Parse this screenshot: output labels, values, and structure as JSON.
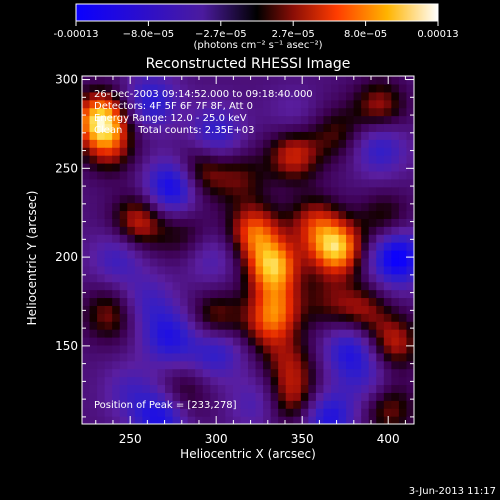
{
  "colorbar": {
    "tick_labels": [
      "-0.00013",
      "−8.0e−05",
      "−2.7e−05",
      "2.7e−05",
      "8.0e−05",
      "0.00013"
    ],
    "unit_label": "(photons cm⁻² s⁻¹ asec⁻²)",
    "range": [
      -0.00013,
      0.00013
    ]
  },
  "chart_data": {
    "type": "heatmap",
    "title": "Reconstructed RHESSI Image",
    "xlabel": "Heliocentric X (arcsec)",
    "ylabel": "Heliocentric Y (arcsec)",
    "xlim": [
      222,
      415
    ],
    "ylim": [
      106,
      302
    ],
    "xticks": [
      250,
      300,
      350,
      400
    ],
    "yticks": [
      150,
      200,
      250,
      300
    ],
    "grid": false,
    "annotations": [
      "26-Dec-2003 09:14:52.000 to 09:18:40.000",
      "Detectors: 4F 5F 6F 7F 8F, Att 0",
      "Energy Range: 12.0 - 25.0 keV",
      "Clean     Total counts: 2.35E+03"
    ],
    "peak_label": "Position of Peak = [233,278]",
    "peak": [
      233,
      278
    ],
    "blobs": [
      {
        "x": 233,
        "y": 278,
        "v": 1.0
      },
      {
        "x": 238,
        "y": 262,
        "v": 0.45
      },
      {
        "x": 262,
        "y": 288,
        "v": -0.55
      },
      {
        "x": 275,
        "y": 240,
        "v": -0.85
      },
      {
        "x": 300,
        "y": 270,
        "v": -0.5
      },
      {
        "x": 290,
        "y": 248,
        "v": 0.55
      },
      {
        "x": 314,
        "y": 245,
        "v": 0.35
      },
      {
        "x": 345,
        "y": 258,
        "v": 0.6
      },
      {
        "x": 345,
        "y": 280,
        "v": -0.2
      },
      {
        "x": 370,
        "y": 270,
        "v": 0.35
      },
      {
        "x": 395,
        "y": 285,
        "v": 0.5
      },
      {
        "x": 395,
        "y": 262,
        "v": -0.5
      },
      {
        "x": 255,
        "y": 220,
        "v": 0.6
      },
      {
        "x": 243,
        "y": 200,
        "v": -0.4
      },
      {
        "x": 282,
        "y": 213,
        "v": 0.3
      },
      {
        "x": 297,
        "y": 200,
        "v": -0.3
      },
      {
        "x": 322,
        "y": 215,
        "v": 0.7
      },
      {
        "x": 333,
        "y": 195,
        "v": 0.9
      },
      {
        "x": 357,
        "y": 220,
        "v": 0.5
      },
      {
        "x": 370,
        "y": 205,
        "v": 0.95
      },
      {
        "x": 405,
        "y": 200,
        "v": -0.9
      },
      {
        "x": 398,
        "y": 222,
        "v": 0.35
      },
      {
        "x": 238,
        "y": 168,
        "v": 0.45
      },
      {
        "x": 260,
        "y": 175,
        "v": -0.35
      },
      {
        "x": 273,
        "y": 155,
        "v": -0.6
      },
      {
        "x": 300,
        "y": 165,
        "v": 0.5
      },
      {
        "x": 300,
        "y": 148,
        "v": -0.55
      },
      {
        "x": 330,
        "y": 160,
        "v": 0.4
      },
      {
        "x": 335,
        "y": 172,
        "v": 0.55
      },
      {
        "x": 343,
        "y": 140,
        "v": 0.4
      },
      {
        "x": 365,
        "y": 175,
        "v": 0.3
      },
      {
        "x": 385,
        "y": 170,
        "v": 0.45
      },
      {
        "x": 403,
        "y": 152,
        "v": 0.55
      },
      {
        "x": 378,
        "y": 148,
        "v": -0.6
      },
      {
        "x": 250,
        "y": 125,
        "v": -0.3
      },
      {
        "x": 280,
        "y": 123,
        "v": 0.35
      },
      {
        "x": 268,
        "y": 110,
        "v": -0.7
      },
      {
        "x": 323,
        "y": 118,
        "v": -0.3
      },
      {
        "x": 345,
        "y": 120,
        "v": 0.5
      },
      {
        "x": 365,
        "y": 110,
        "v": -0.65
      },
      {
        "x": 400,
        "y": 115,
        "v": 0.45
      },
      {
        "x": 388,
        "y": 130,
        "v": -0.3
      }
    ]
  },
  "footer_date": "3-Jun-2013 11:17"
}
